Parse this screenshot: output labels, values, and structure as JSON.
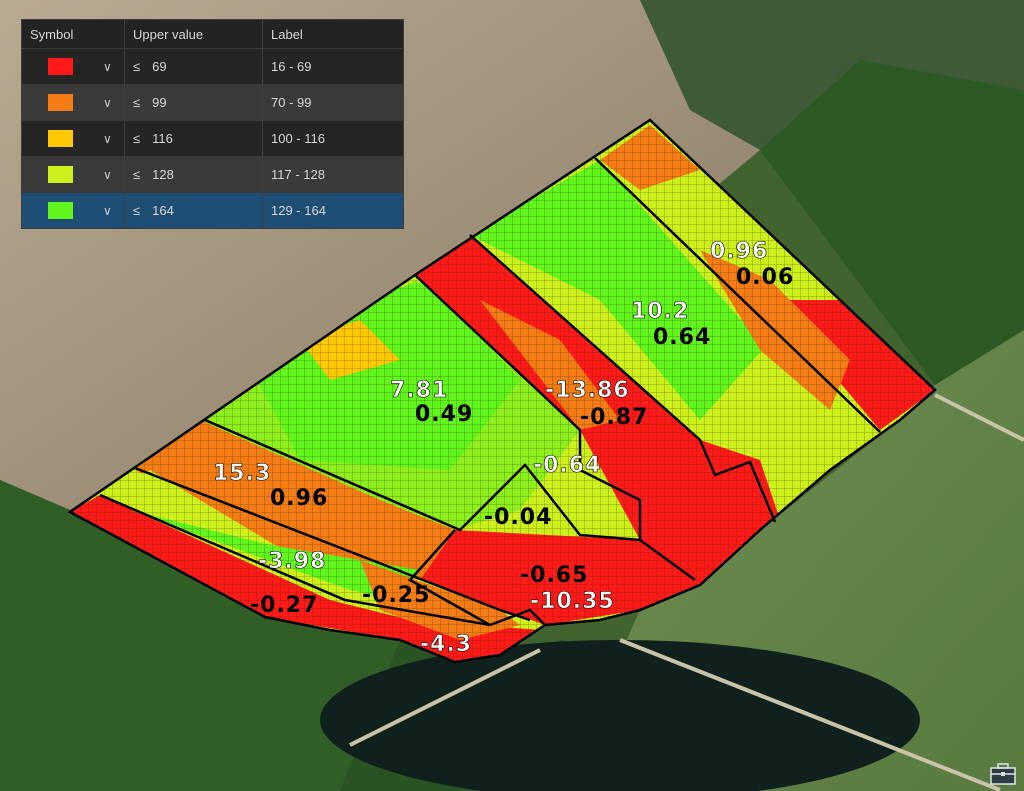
{
  "legend": {
    "headers": {
      "symbol": "Symbol",
      "upper": "Upper value",
      "label": "Label"
    },
    "rows": [
      {
        "color": "#ff1a1a",
        "op": "≤",
        "upper": "69",
        "label": "16 - 69"
      },
      {
        "color": "#f57c14",
        "op": "≤",
        "upper": "99",
        "label": "70 - 99"
      },
      {
        "color": "#ffc800",
        "op": "≤",
        "upper": "116",
        "label": "100 - 116"
      },
      {
        "color": "#ccf01c",
        "op": "≤",
        "upper": "128",
        "label": "117 - 128"
      },
      {
        "color": "#5ff51d",
        "op": "≤",
        "upper": "164",
        "label": "129 - 164"
      }
    ]
  },
  "zones": [
    {
      "top": "0.96",
      "bottom": "0.06"
    },
    {
      "top": "10.2",
      "bottom": "0.64"
    },
    {
      "top": "-13.86",
      "bottom": "-0.87"
    },
    {
      "top": "7.81",
      "bottom": "0.49"
    },
    {
      "top": "-0.64",
      "bottom": "-0.04"
    },
    {
      "top": "15.3",
      "bottom": "0.96"
    },
    {
      "top": "-3.98",
      "bottom": "-0.25"
    },
    {
      "top": "-0.65",
      "bottom": "-10.35"
    },
    {
      "single": "-0.27"
    },
    {
      "single": "-4.3"
    }
  ],
  "icons": {
    "toolbox": "toolbox-icon"
  }
}
